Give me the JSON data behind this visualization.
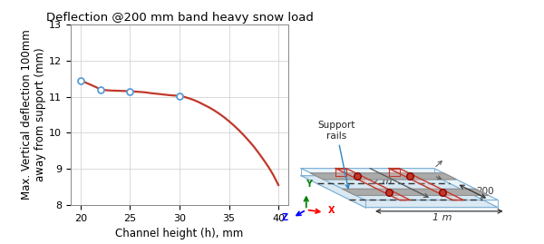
{
  "title": "Deflection @200 mm band heavy snow load",
  "xlabel": "Channel height (h), mm",
  "ylabel": "Max. Vertical deflection 100mm\naway from support (mm)",
  "x_data": [
    20,
    22,
    25,
    30
  ],
  "y_data": [
    11.45,
    11.2,
    11.15,
    11.02
  ],
  "x_curve": [
    20,
    20.5,
    21,
    21.5,
    22,
    22.5,
    23,
    23.5,
    24,
    24.5,
    25,
    25.5,
    26,
    26.5,
    27,
    27.5,
    28,
    28.5,
    29,
    29.5,
    30,
    30.5,
    31,
    31.5,
    32,
    32.5,
    33,
    33.5,
    34,
    34.5,
    35,
    35.5,
    36,
    36.5,
    37,
    37.5,
    38,
    38.5,
    39,
    39.5,
    40
  ],
  "y_curve": [
    11.45,
    11.39,
    11.33,
    11.27,
    11.2,
    11.18,
    11.17,
    11.165,
    11.16,
    11.155,
    11.15,
    11.14,
    11.13,
    11.12,
    11.1,
    11.085,
    11.07,
    11.055,
    11.04,
    11.03,
    11.02,
    10.99,
    10.95,
    10.9,
    10.84,
    10.77,
    10.7,
    10.62,
    10.53,
    10.43,
    10.32,
    10.2,
    10.07,
    9.93,
    9.78,
    9.62,
    9.44,
    9.25,
    9.05,
    8.82,
    8.55
  ],
  "xlim": [
    19,
    41
  ],
  "ylim": [
    8,
    13
  ],
  "xticks": [
    20,
    25,
    30,
    35,
    40
  ],
  "yticks": [
    8,
    9,
    10,
    11,
    12,
    13
  ],
  "line_color": "#C0392B",
  "marker_color": "#5B9BD5",
  "grid_color": "#CCCCCC",
  "title_fontsize": 9.5,
  "axis_fontsize": 8.5,
  "tick_fontsize": 8
}
